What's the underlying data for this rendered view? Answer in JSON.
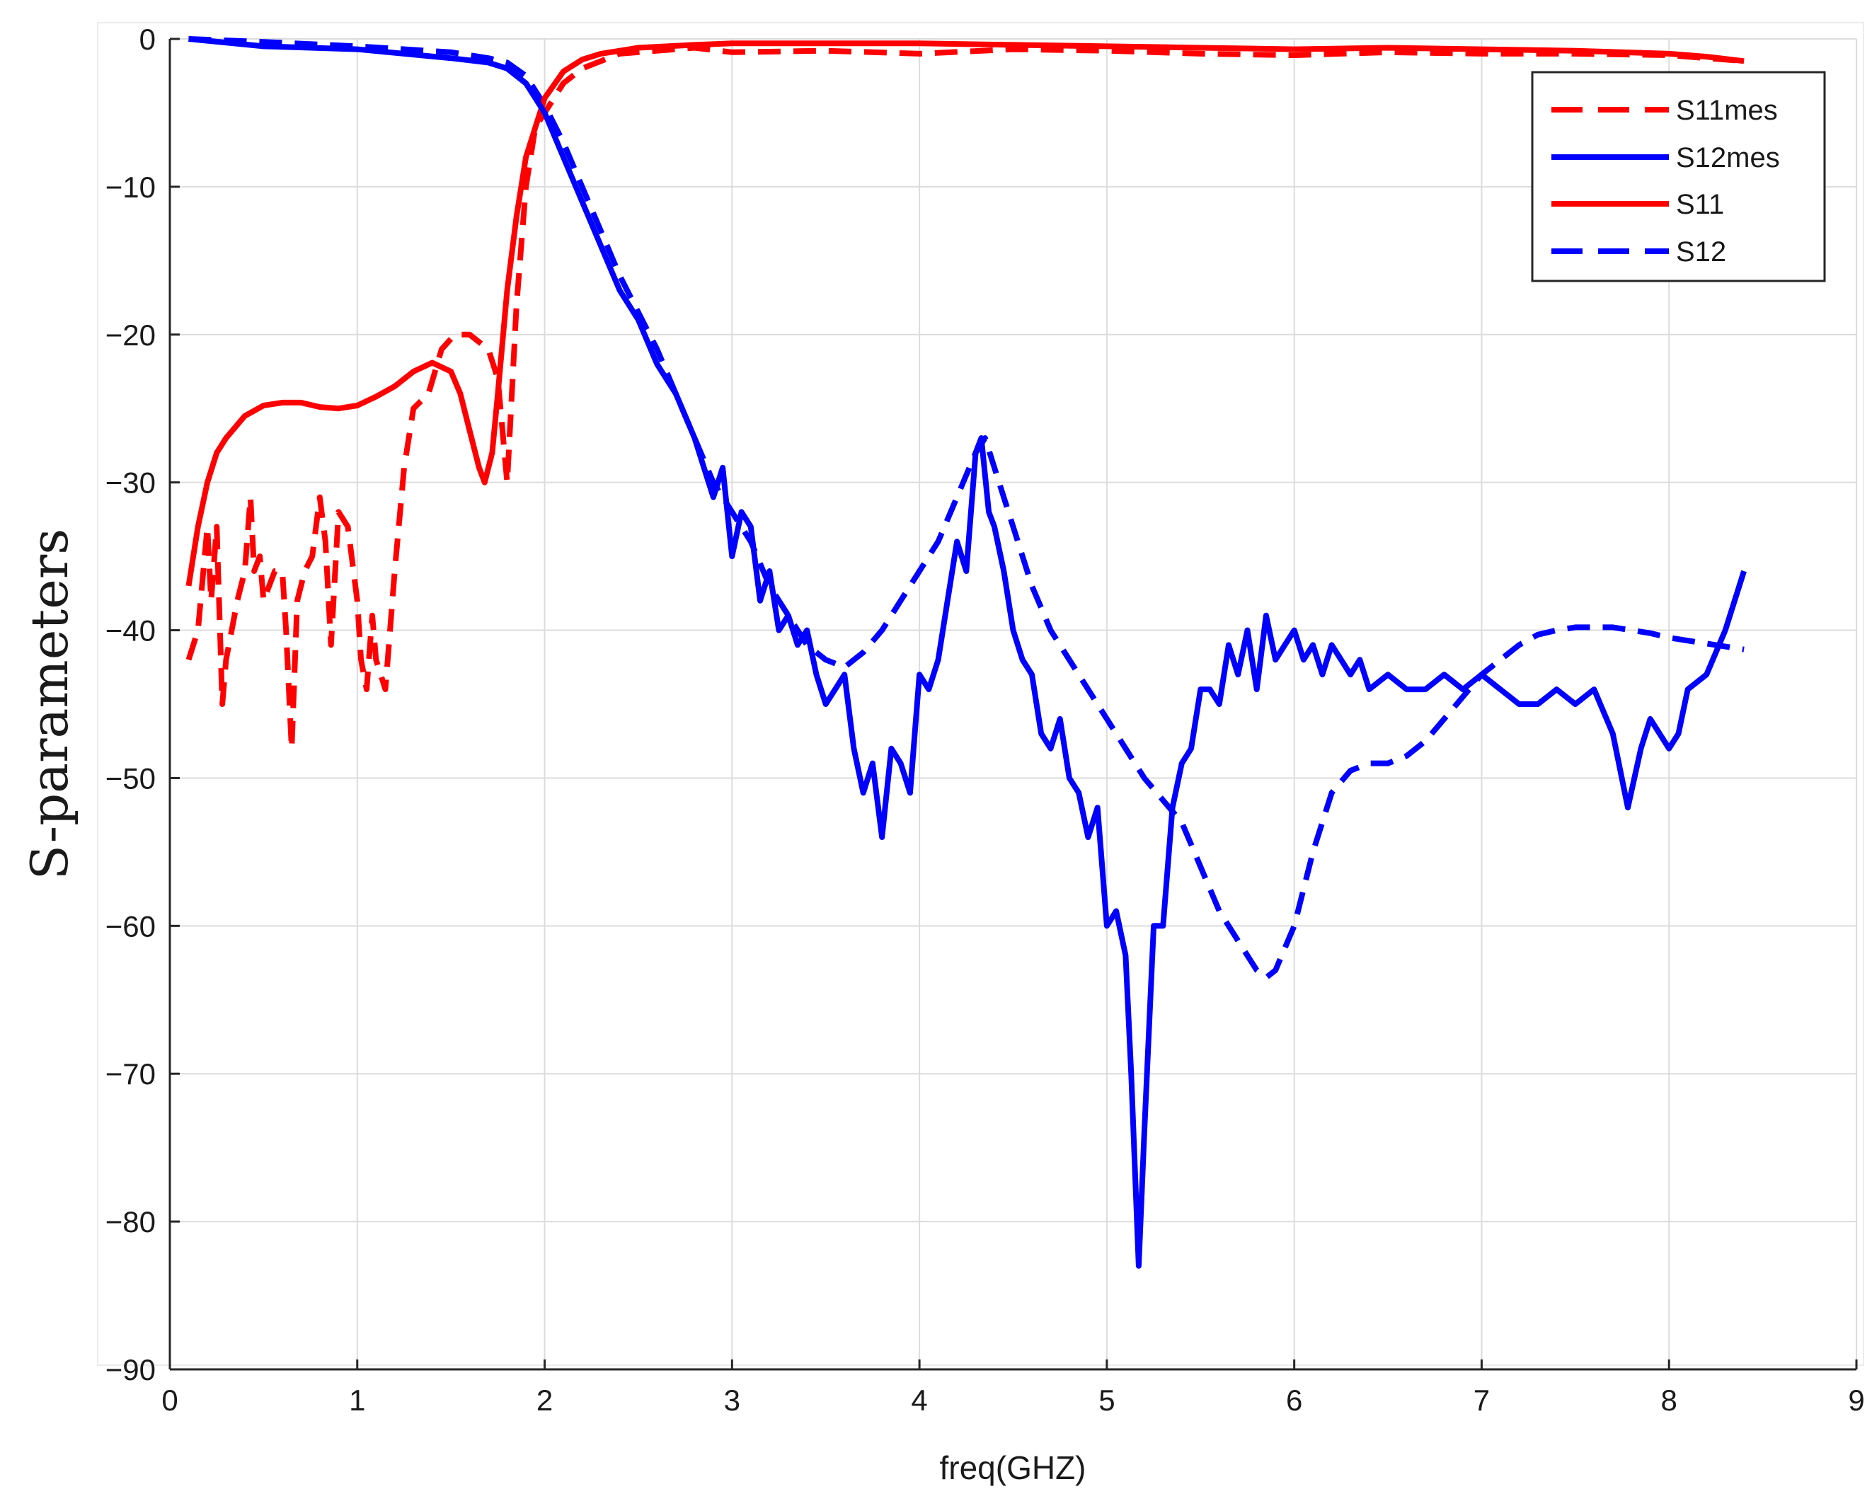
{
  "chart_data": {
    "type": "line",
    "title": "",
    "xlabel": "freq(GHZ)",
    "ylabel": "S-parameters",
    "xlim": [
      0,
      9
    ],
    "ylim": [
      -90,
      0
    ],
    "xticks": [
      0,
      1,
      2,
      3,
      4,
      5,
      6,
      7,
      8,
      9
    ],
    "yticks": [
      0,
      -10,
      -20,
      -30,
      -40,
      -50,
      -60,
      -70,
      -80,
      -90
    ],
    "xtick_labels": [
      "0",
      "1",
      "2",
      "3",
      "4",
      "5",
      "6",
      "7",
      "8",
      "9"
    ],
    "ytick_labels": [
      "0",
      "−10",
      "−20",
      "−30",
      "−40",
      "−50",
      "−60",
      "−70",
      "−80",
      "−90"
    ],
    "grid": true,
    "legend_position": "top-right",
    "series": [
      {
        "name": "S11mes",
        "color": "#ff0000",
        "style": "dashed",
        "points": [
          [
            0.1,
            -42
          ],
          [
            0.15,
            -40
          ],
          [
            0.2,
            -33
          ],
          [
            0.22,
            -38
          ],
          [
            0.25,
            -33
          ],
          [
            0.28,
            -45
          ],
          [
            0.3,
            -42
          ],
          [
            0.33,
            -40
          ],
          [
            0.36,
            -38
          ],
          [
            0.4,
            -36
          ],
          [
            0.43,
            -31
          ],
          [
            0.45,
            -36
          ],
          [
            0.48,
            -35
          ],
          [
            0.5,
            -38
          ],
          [
            0.53,
            -37
          ],
          [
            0.56,
            -36
          ],
          [
            0.6,
            -36
          ],
          [
            0.62,
            -40
          ],
          [
            0.65,
            -48
          ],
          [
            0.68,
            -38
          ],
          [
            0.72,
            -36
          ],
          [
            0.76,
            -35
          ],
          [
            0.8,
            -31
          ],
          [
            0.83,
            -34
          ],
          [
            0.86,
            -41
          ],
          [
            0.9,
            -32
          ],
          [
            0.95,
            -33
          ],
          [
            1.0,
            -38
          ],
          [
            1.02,
            -42
          ],
          [
            1.05,
            -44
          ],
          [
            1.08,
            -39
          ],
          [
            1.1,
            -42
          ],
          [
            1.15,
            -44
          ],
          [
            1.2,
            -36
          ],
          [
            1.25,
            -29
          ],
          [
            1.3,
            -25
          ],
          [
            1.38,
            -24
          ],
          [
            1.45,
            -21
          ],
          [
            1.52,
            -20
          ],
          [
            1.6,
            -20
          ],
          [
            1.7,
            -21
          ],
          [
            1.75,
            -23
          ],
          [
            1.8,
            -30
          ],
          [
            1.85,
            -18
          ],
          [
            1.9,
            -10
          ],
          [
            1.95,
            -6
          ],
          [
            2.0,
            -5
          ],
          [
            2.1,
            -3
          ],
          [
            2.2,
            -2
          ],
          [
            2.4,
            -1
          ],
          [
            2.6,
            -0.8
          ],
          [
            2.8,
            -0.6
          ],
          [
            3.0,
            -0.9
          ],
          [
            3.5,
            -0.8
          ],
          [
            4.0,
            -1.0
          ],
          [
            4.5,
            -0.7
          ],
          [
            5.0,
            -0.8
          ],
          [
            5.5,
            -1.0
          ],
          [
            6.0,
            -1.1
          ],
          [
            6.5,
            -0.9
          ],
          [
            7.0,
            -1.0
          ],
          [
            7.5,
            -1.0
          ],
          [
            8.0,
            -1.1
          ],
          [
            8.2,
            -1.3
          ],
          [
            8.4,
            -1.5
          ]
        ]
      },
      {
        "name": "S12mes",
        "color": "#0000ff",
        "style": "solid",
        "points": [
          [
            0.1,
            0
          ],
          [
            0.5,
            -0.5
          ],
          [
            1.0,
            -0.7
          ],
          [
            1.5,
            -1.3
          ],
          [
            1.7,
            -1.6
          ],
          [
            1.8,
            -2
          ],
          [
            1.9,
            -3
          ],
          [
            2.0,
            -5
          ],
          [
            2.1,
            -8
          ],
          [
            2.2,
            -11
          ],
          [
            2.3,
            -14
          ],
          [
            2.4,
            -17
          ],
          [
            2.5,
            -19
          ],
          [
            2.6,
            -22
          ],
          [
            2.7,
            -24
          ],
          [
            2.8,
            -27
          ],
          [
            2.85,
            -29
          ],
          [
            2.9,
            -31
          ],
          [
            2.95,
            -29
          ],
          [
            3.0,
            -35
          ],
          [
            3.05,
            -32
          ],
          [
            3.1,
            -33
          ],
          [
            3.15,
            -38
          ],
          [
            3.2,
            -36
          ],
          [
            3.25,
            -40
          ],
          [
            3.3,
            -39
          ],
          [
            3.35,
            -41
          ],
          [
            3.4,
            -40
          ],
          [
            3.45,
            -43
          ],
          [
            3.5,
            -45
          ],
          [
            3.55,
            -44
          ],
          [
            3.6,
            -43
          ],
          [
            3.65,
            -48
          ],
          [
            3.7,
            -51
          ],
          [
            3.75,
            -49
          ],
          [
            3.8,
            -54
          ],
          [
            3.85,
            -48
          ],
          [
            3.9,
            -49
          ],
          [
            3.95,
            -51
          ],
          [
            4.0,
            -43
          ],
          [
            4.05,
            -44
          ],
          [
            4.1,
            -42
          ],
          [
            4.15,
            -38
          ],
          [
            4.2,
            -34
          ],
          [
            4.25,
            -36
          ],
          [
            4.3,
            -28
          ],
          [
            4.33,
            -27
          ],
          [
            4.37,
            -32
          ],
          [
            4.4,
            -33
          ],
          [
            4.45,
            -36
          ],
          [
            4.5,
            -40
          ],
          [
            4.55,
            -42
          ],
          [
            4.6,
            -43
          ],
          [
            4.65,
            -47
          ],
          [
            4.7,
            -48
          ],
          [
            4.75,
            -46
          ],
          [
            4.8,
            -50
          ],
          [
            4.85,
            -51
          ],
          [
            4.9,
            -54
          ],
          [
            4.95,
            -52
          ],
          [
            5.0,
            -60
          ],
          [
            5.05,
            -59
          ],
          [
            5.1,
            -62
          ],
          [
            5.13,
            -70
          ],
          [
            5.17,
            -83
          ],
          [
            5.2,
            -74
          ],
          [
            5.25,
            -60
          ],
          [
            5.3,
            -60
          ],
          [
            5.35,
            -52
          ],
          [
            5.4,
            -49
          ],
          [
            5.45,
            -48
          ],
          [
            5.5,
            -44
          ],
          [
            5.55,
            -44
          ],
          [
            5.6,
            -45
          ],
          [
            5.65,
            -41
          ],
          [
            5.7,
            -43
          ],
          [
            5.75,
            -40
          ],
          [
            5.8,
            -44
          ],
          [
            5.85,
            -39
          ],
          [
            5.9,
            -42
          ],
          [
            5.95,
            -41
          ],
          [
            6.0,
            -40
          ],
          [
            6.05,
            -42
          ],
          [
            6.1,
            -41
          ],
          [
            6.15,
            -43
          ],
          [
            6.2,
            -41
          ],
          [
            6.25,
            -42
          ],
          [
            6.3,
            -43
          ],
          [
            6.35,
            -42
          ],
          [
            6.4,
            -44
          ],
          [
            6.5,
            -43
          ],
          [
            6.6,
            -44
          ],
          [
            6.7,
            -44
          ],
          [
            6.8,
            -43
          ],
          [
            6.9,
            -44
          ],
          [
            7.0,
            -43
          ],
          [
            7.1,
            -44
          ],
          [
            7.2,
            -45
          ],
          [
            7.3,
            -45
          ],
          [
            7.4,
            -44
          ],
          [
            7.5,
            -45
          ],
          [
            7.6,
            -44
          ],
          [
            7.7,
            -47
          ],
          [
            7.78,
            -52
          ],
          [
            7.85,
            -48
          ],
          [
            7.9,
            -46
          ],
          [
            8.0,
            -48
          ],
          [
            8.05,
            -47
          ],
          [
            8.1,
            -44
          ],
          [
            8.2,
            -43
          ],
          [
            8.3,
            -40
          ],
          [
            8.4,
            -36
          ]
        ]
      },
      {
        "name": "S11",
        "color": "#ff0000",
        "style": "solid",
        "points": [
          [
            0.1,
            -37
          ],
          [
            0.15,
            -33
          ],
          [
            0.2,
            -30
          ],
          [
            0.25,
            -28
          ],
          [
            0.3,
            -27
          ],
          [
            0.4,
            -25.5
          ],
          [
            0.5,
            -24.8
          ],
          [
            0.6,
            -24.6
          ],
          [
            0.7,
            -24.6
          ],
          [
            0.8,
            -24.9
          ],
          [
            0.9,
            -25
          ],
          [
            1.0,
            -24.8
          ],
          [
            1.1,
            -24.2
          ],
          [
            1.2,
            -23.5
          ],
          [
            1.3,
            -22.5
          ],
          [
            1.4,
            -21.9
          ],
          [
            1.5,
            -22.5
          ],
          [
            1.55,
            -24
          ],
          [
            1.6,
            -26.5
          ],
          [
            1.65,
            -29
          ],
          [
            1.68,
            -30
          ],
          [
            1.72,
            -28
          ],
          [
            1.75,
            -24
          ],
          [
            1.8,
            -17
          ],
          [
            1.85,
            -12
          ],
          [
            1.9,
            -8
          ],
          [
            1.95,
            -6
          ],
          [
            2.0,
            -4
          ],
          [
            2.1,
            -2.2
          ],
          [
            2.2,
            -1.4
          ],
          [
            2.3,
            -1.0
          ],
          [
            2.5,
            -0.6
          ],
          [
            2.8,
            -0.4
          ],
          [
            3.0,
            -0.3
          ],
          [
            3.5,
            -0.3
          ],
          [
            4.0,
            -0.3
          ],
          [
            4.5,
            -0.4
          ],
          [
            5.0,
            -0.5
          ],
          [
            5.5,
            -0.6
          ],
          [
            6.0,
            -0.7
          ],
          [
            6.5,
            -0.6
          ],
          [
            7.0,
            -0.7
          ],
          [
            7.5,
            -0.8
          ],
          [
            8.0,
            -1.0
          ],
          [
            8.2,
            -1.2
          ],
          [
            8.4,
            -1.5
          ]
        ]
      },
      {
        "name": "S12",
        "color": "#0000ff",
        "style": "dashed",
        "points": [
          [
            0.1,
            0
          ],
          [
            0.5,
            -0.2
          ],
          [
            1.0,
            -0.5
          ],
          [
            1.5,
            -0.9
          ],
          [
            1.7,
            -1.3
          ],
          [
            1.8,
            -1.6
          ],
          [
            1.9,
            -2.5
          ],
          [
            2.0,
            -4.5
          ],
          [
            2.1,
            -7
          ],
          [
            2.2,
            -10
          ],
          [
            2.3,
            -13
          ],
          [
            2.4,
            -16
          ],
          [
            2.5,
            -18.5
          ],
          [
            2.6,
            -21
          ],
          [
            2.7,
            -24
          ],
          [
            2.8,
            -27
          ],
          [
            2.9,
            -30
          ],
          [
            3.0,
            -32
          ],
          [
            3.1,
            -34
          ],
          [
            3.2,
            -37
          ],
          [
            3.3,
            -39
          ],
          [
            3.4,
            -41
          ],
          [
            3.5,
            -42
          ],
          [
            3.6,
            -42.5
          ],
          [
            3.7,
            -41.5
          ],
          [
            3.8,
            -40
          ],
          [
            3.9,
            -38
          ],
          [
            4.0,
            -36
          ],
          [
            4.1,
            -34
          ],
          [
            4.2,
            -31
          ],
          [
            4.3,
            -28
          ],
          [
            4.35,
            -27
          ],
          [
            4.4,
            -29
          ],
          [
            4.5,
            -33
          ],
          [
            4.6,
            -37
          ],
          [
            4.7,
            -40
          ],
          [
            4.8,
            -42
          ],
          [
            4.9,
            -44
          ],
          [
            5.0,
            -46
          ],
          [
            5.1,
            -48
          ],
          [
            5.2,
            -50
          ],
          [
            5.3,
            -51.5
          ],
          [
            5.4,
            -53
          ],
          [
            5.5,
            -56
          ],
          [
            5.6,
            -59
          ],
          [
            5.7,
            -61
          ],
          [
            5.8,
            -63
          ],
          [
            5.85,
            -63.5
          ],
          [
            5.9,
            -63
          ],
          [
            6.0,
            -60
          ],
          [
            6.1,
            -55
          ],
          [
            6.2,
            -51
          ],
          [
            6.3,
            -49.5
          ],
          [
            6.4,
            -49
          ],
          [
            6.5,
            -49
          ],
          [
            6.6,
            -48.5
          ],
          [
            6.7,
            -47.5
          ],
          [
            6.8,
            -46
          ],
          [
            6.9,
            -44.5
          ],
          [
            7.0,
            -43
          ],
          [
            7.1,
            -42
          ],
          [
            7.2,
            -41
          ],
          [
            7.3,
            -40.3
          ],
          [
            7.4,
            -40
          ],
          [
            7.5,
            -39.8
          ],
          [
            7.6,
            -39.8
          ],
          [
            7.7,
            -39.8
          ],
          [
            7.8,
            -40
          ],
          [
            7.9,
            -40.2
          ],
          [
            8.0,
            -40.5
          ],
          [
            8.2,
            -40.9
          ],
          [
            8.4,
            -41.3
          ]
        ]
      }
    ]
  }
}
